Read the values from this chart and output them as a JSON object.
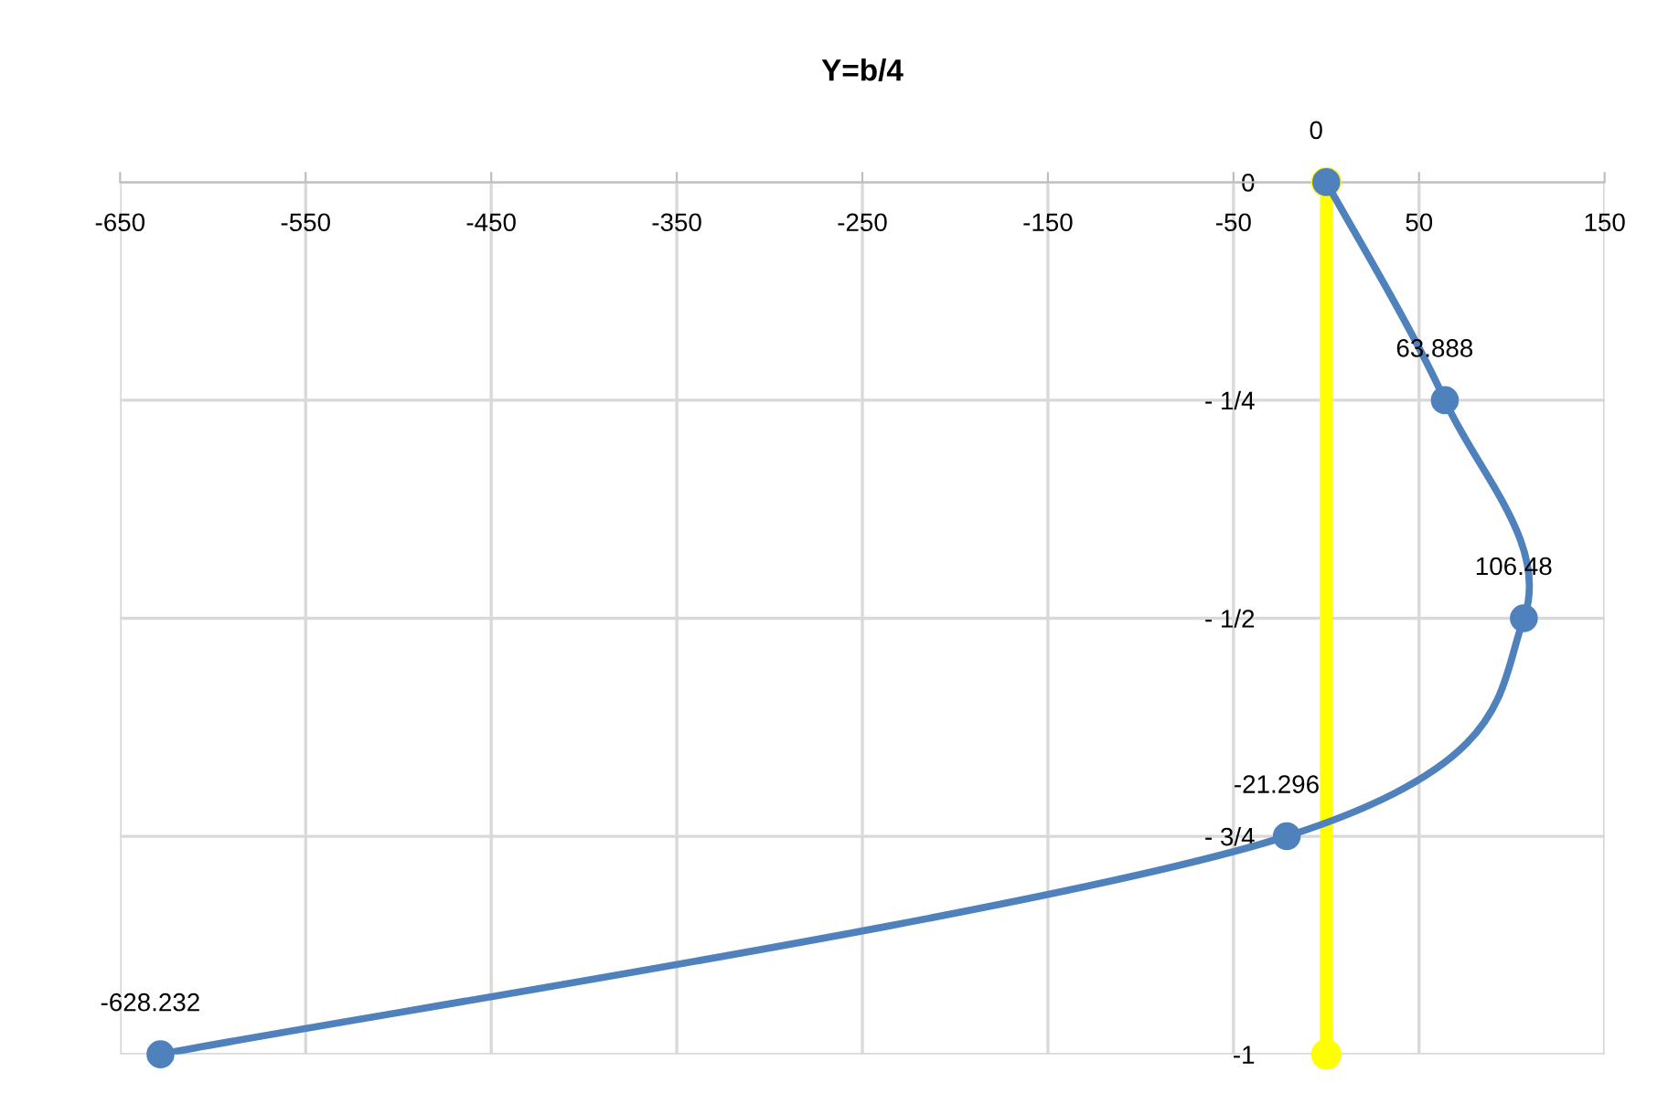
{
  "chart_data": {
    "type": "line",
    "title": "Y=b/4",
    "series": [
      {
        "color": "#ffff00",
        "x": [
          0,
          0
        ],
        "values": [
          0,
          -1
        ]
      },
      {
        "color": "#4f81bd",
        "x": [
          0,
          63.888,
          106.48,
          -21.296,
          -628.232
        ],
        "values": [
          0,
          -0.25,
          -0.5,
          -0.75,
          -1
        ]
      }
    ],
    "annotations": [
      {
        "text": "0",
        "x": 0,
        "y": 0
      },
      {
        "text": "63.888",
        "x": 63.888,
        "y": -0.25
      },
      {
        "text": "106.48",
        "x": 106.48,
        "y": -0.5
      },
      {
        "text": "-21.296",
        "x": -21.296,
        "y": -0.75
      },
      {
        "text": "-628.232",
        "x": -628.232,
        "y": -1
      }
    ],
    "xlim": [
      -650,
      150
    ],
    "xticks": [
      -650,
      -550,
      -450,
      -350,
      -250,
      -150,
      -50,
      50,
      150
    ],
    "ylim": [
      -1,
      0
    ],
    "yticks": [
      0,
      {
        "value": -0.25,
        "label": "- 1/4"
      },
      {
        "value": -0.5,
        "label": "- 1/2"
      },
      {
        "value": -0.75,
        "label": "- 3/4"
      },
      -1
    ],
    "grid": true,
    "marker": "circle",
    "line_style": "solid",
    "legend": false
  }
}
